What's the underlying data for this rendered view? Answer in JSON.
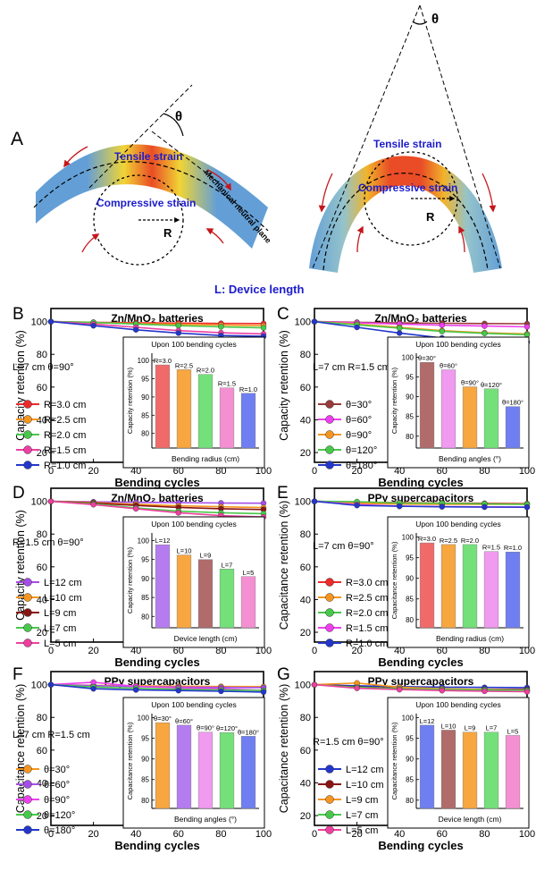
{
  "schematic": {
    "label": "A",
    "theta": "θ",
    "tensile": "Tensile strain",
    "compressive": "Compressive strain",
    "radius": "R",
    "neutral": "Mechanical neutral plane",
    "length": "L: Device length"
  },
  "colors": {
    "band_blue": "#5b9ad4",
    "band_red": "#e8431a",
    "band_yellow": "#f0d22a",
    "text_blue": "#1c1ccc",
    "arrow_red": "#c4161c"
  },
  "chart_data": [
    {
      "panel": "B",
      "type": "line",
      "title": "Zn/MnO₂ batteries",
      "xlabel": "Bending cycles",
      "ylabel": "Capacity retention (%)",
      "condition": "L=7 cm θ=90°",
      "x": [
        0,
        20,
        40,
        60,
        80,
        100
      ],
      "xticks": [
        0,
        20,
        40,
        60,
        80,
        100
      ],
      "yticks": [
        20,
        40,
        60,
        80,
        100
      ],
      "ylim": [
        14,
        108
      ],
      "series": [
        {
          "name": "R=3.0 cm",
          "color": "#ee2a2a",
          "values": [
            100,
            99.6,
            99.3,
            99.1,
            98.9,
            98.8
          ]
        },
        {
          "name": "R=2.5 cm",
          "color": "#f5951e",
          "values": [
            100,
            99.3,
            98.8,
            98.3,
            97.9,
            97.5
          ]
        },
        {
          "name": "R=2.0 cm",
          "color": "#48c84a",
          "values": [
            100,
            99.5,
            98.5,
            97.5,
            96.8,
            96.2
          ]
        },
        {
          "name": "R=1.5 cm",
          "color": "#ee3fa4",
          "values": [
            100,
            98.5,
            96.5,
            94.5,
            93.2,
            92.5
          ]
        },
        {
          "name": "R=1.0 cm",
          "color": "#2336cc",
          "values": [
            100,
            97.5,
            95,
            93,
            91.5,
            91
          ]
        }
      ],
      "inset": {
        "title": "Upon 100 bending cycles",
        "xlabel": "Bending radius (cm)",
        "ylabel": "Capacity retention (%)",
        "yticks": [
          80,
          85,
          90,
          95,
          100
        ],
        "ylim": [
          76,
          102
        ],
        "bars": [
          {
            "label": "R=3.0",
            "value": 98.8,
            "color": "#f06a6a"
          },
          {
            "label": "R=2.5",
            "value": 97.5,
            "color": "#f7a640"
          },
          {
            "label": "R=2.0",
            "value": 96.2,
            "color": "#74e07a"
          },
          {
            "label": "R=1.5",
            "value": 92.5,
            "color": "#f490d2"
          },
          {
            "label": "R=1.0",
            "value": 91,
            "color": "#6f7ef0"
          }
        ]
      }
    },
    {
      "panel": "C",
      "type": "line",
      "title": "Zn/MnO₂ batteries",
      "xlabel": "Bending cycles",
      "ylabel": "Capacity retention (%)",
      "condition": "L=7 cm R=1.5 cm",
      "x": [
        0,
        20,
        40,
        60,
        80,
        100
      ],
      "xticks": [
        0,
        20,
        40,
        60,
        80,
        100
      ],
      "yticks": [
        20,
        40,
        60,
        80,
        100
      ],
      "ylim": [
        14,
        108
      ],
      "series": [
        {
          "name": "θ=30°",
          "color": "#9a3a3a",
          "values": [
            100,
            99.6,
            99.2,
            99,
            98.8,
            98.7
          ]
        },
        {
          "name": "θ=60°",
          "color": "#ee3fee",
          "values": [
            100,
            99.3,
            98.5,
            97.8,
            97.3,
            96.8
          ]
        },
        {
          "name": "θ=90°",
          "color": "#f5951e",
          "values": [
            100,
            98.5,
            96.5,
            94.5,
            93.2,
            92.5
          ]
        },
        {
          "name": "θ=120°",
          "color": "#48c84a",
          "values": [
            100,
            98,
            96,
            94,
            92.8,
            92
          ]
        },
        {
          "name": "θ=180°",
          "color": "#2336cc",
          "values": [
            100,
            96.5,
            93,
            90,
            88.2,
            87.5
          ]
        }
      ],
      "inset": {
        "title": "Upon 100 bending cycles",
        "xlabel": "Bending angles (°)",
        "ylabel": "Capacity retention (%)",
        "yticks": [
          80,
          85,
          90,
          95,
          100
        ],
        "ylim": [
          77,
          101
        ],
        "bars": [
          {
            "label": "θ=30°",
            "value": 98.7,
            "color": "#b06b6b"
          },
          {
            "label": "θ=60°",
            "value": 96.8,
            "color": "#f09af0"
          },
          {
            "label": "θ=90°",
            "value": 92.5,
            "color": "#f7a640"
          },
          {
            "label": "θ=120°",
            "value": 92,
            "color": "#74e07a"
          },
          {
            "label": "θ=180°",
            "value": 87.5,
            "color": "#6f7ef0"
          }
        ]
      }
    },
    {
      "panel": "D",
      "type": "line",
      "title": "Zn/MnO₂ batteries",
      "xlabel": "Bending cycles",
      "ylabel": "Capacity retention (%)",
      "condition": "R=1.5 cm θ=90°",
      "x": [
        0,
        20,
        40,
        60,
        80,
        100
      ],
      "xticks": [
        0,
        20,
        40,
        60,
        80,
        100
      ],
      "yticks": [
        20,
        40,
        60,
        80,
        100
      ],
      "ylim": [
        14,
        108
      ],
      "series": [
        {
          "name": "L=12 cm",
          "color": "#a64de8",
          "values": [
            100,
            99.7,
            99.4,
            99.2,
            99,
            98.9
          ]
        },
        {
          "name": "L=10 cm",
          "color": "#f5951e",
          "values": [
            100,
            99.3,
            98.2,
            97.3,
            96.7,
            96.2
          ]
        },
        {
          "name": "L=9 cm",
          "color": "#8a1414",
          "values": [
            100,
            99,
            97.5,
            96.3,
            95.5,
            95
          ]
        },
        {
          "name": "L=7 cm",
          "color": "#48c84a",
          "values": [
            100,
            98.5,
            96,
            94,
            93,
            92.5
          ]
        },
        {
          "name": "L=5 cm",
          "color": "#ee3f9e",
          "values": [
            100,
            98,
            95.5,
            93,
            91.3,
            90.5
          ]
        }
      ],
      "inset": {
        "title": "Upon 100 bending cycles",
        "xlabel": "Device length (cm)",
        "ylabel": "Capacity retention (%)",
        "yticks": [
          80,
          85,
          90,
          95,
          100
        ],
        "ylim": [
          77,
          102
        ],
        "bars": [
          {
            "label": "L=12",
            "value": 98.9,
            "color": "#b57cf0"
          },
          {
            "label": "L=10",
            "value": 96.2,
            "color": "#f7a640"
          },
          {
            "label": "L=9",
            "value": 95,
            "color": "#b06b6b"
          },
          {
            "label": "L=7",
            "value": 92.5,
            "color": "#74e07a"
          },
          {
            "label": "L=5",
            "value": 90.5,
            "color": "#f490d2"
          }
        ]
      }
    },
    {
      "panel": "E",
      "type": "line",
      "title": "PPy supercapacitors",
      "xlabel": "Bending cycles",
      "ylabel": "Capacitance retention (%)",
      "condition": "L=7 cm θ=90°",
      "x": [
        0,
        20,
        40,
        60,
        80,
        100
      ],
      "xticks": [
        0,
        20,
        40,
        60,
        80,
        100
      ],
      "yticks": [
        20,
        40,
        60,
        80,
        100
      ],
      "ylim": [
        14,
        108
      ],
      "series": [
        {
          "name": "R=3.0 cm",
          "color": "#ee2a2a",
          "values": [
            100,
            99.5,
            99.2,
            99,
            98.8,
            98.6
          ]
        },
        {
          "name": "R=2.5 cm",
          "color": "#f5951e",
          "values": [
            100,
            98.8,
            98.3,
            98.2,
            98.2,
            98.2
          ]
        },
        {
          "name": "R=2.0 cm",
          "color": "#48c84a",
          "values": [
            100,
            99.8,
            99,
            98.8,
            98.5,
            98.2
          ]
        },
        {
          "name": "R=1.5 cm",
          "color": "#ee3fee",
          "values": [
            100,
            98,
            97,
            96.8,
            96.6,
            96.5
          ]
        },
        {
          "name": "R=1.0 cm",
          "color": "#2336cc",
          "values": [
            100,
            97.5,
            97,
            96.7,
            96.5,
            96.4
          ]
        }
      ],
      "inset": {
        "title": "Upon 100 bending cycles",
        "xlabel": "Bending radius (cm)",
        "ylabel": "Capacitance retention (%)",
        "yticks": [
          80,
          85,
          90,
          95,
          100
        ],
        "ylim": [
          78,
          101
        ],
        "bars": [
          {
            "label": "R=3.0",
            "value": 98.6,
            "color": "#f06a6a"
          },
          {
            "label": "R=2.5",
            "value": 98.2,
            "color": "#f7a640"
          },
          {
            "label": "R=2.0",
            "value": 98.2,
            "color": "#74e07a"
          },
          {
            "label": "R=1.5",
            "value": 96.5,
            "color": "#f09af0"
          },
          {
            "label": "R=1.0",
            "value": 96.4,
            "color": "#6f7ef0"
          }
        ]
      }
    },
    {
      "panel": "F",
      "type": "line",
      "title": "PPy supercapacitors",
      "xlabel": "Bending cycles",
      "ylabel": "Capacitance retention (%)",
      "condition": "L=7 cm R=1.5 cm",
      "x": [
        0,
        20,
        40,
        60,
        80,
        100
      ],
      "xticks": [
        0,
        20,
        40,
        60,
        80,
        100
      ],
      "yticks": [
        20,
        40,
        60,
        80,
        100
      ],
      "ylim": [
        14,
        108
      ],
      "series": [
        {
          "name": "θ=30°",
          "color": "#f5951e",
          "values": [
            100,
            99.6,
            99.3,
            99.1,
            98.9,
            98.8
          ]
        },
        {
          "name": "θ=60°",
          "color": "#a64de8",
          "values": [
            100,
            99.4,
            98.8,
            98.5,
            98.3,
            98.2
          ]
        },
        {
          "name": "θ=90°",
          "color": "#ee3fee",
          "values": [
            100,
            101.5,
            99,
            98,
            97.5,
            96.5
          ]
        },
        {
          "name": "θ=120°",
          "color": "#48c84a",
          "values": [
            100,
            98.6,
            97.8,
            97.2,
            96.8,
            96.4
          ]
        },
        {
          "name": "θ=180°",
          "color": "#2336cc",
          "values": [
            100,
            97.5,
            96.8,
            96.4,
            96,
            95.5
          ]
        }
      ],
      "inset": {
        "title": "Upon 100 bending cycles",
        "xlabel": "Bending angles (°)",
        "ylabel": "Capacitance retention (%)",
        "yticks": [
          80,
          85,
          90,
          95,
          100
        ],
        "ylim": [
          78,
          101
        ],
        "bars": [
          {
            "label": "θ=30°",
            "value": 98.8,
            "color": "#f7a640"
          },
          {
            "label": "θ=60°",
            "value": 98.2,
            "color": "#b57cf0"
          },
          {
            "label": "θ=90°",
            "value": 96.5,
            "color": "#f09af0"
          },
          {
            "label": "θ=120°",
            "value": 96.4,
            "color": "#74e07a"
          },
          {
            "label": "θ=180°",
            "value": 95.5,
            "color": "#6f7ef0"
          }
        ]
      }
    },
    {
      "panel": "G",
      "type": "line",
      "title": "PPy supercapacitors",
      "xlabel": "Bending cycles",
      "ylabel": "Capacitance retention (%)",
      "condition": "R=1.5 cm θ=90°",
      "x": [
        0,
        20,
        40,
        60,
        80,
        100
      ],
      "xticks": [
        0,
        20,
        40,
        60,
        80,
        100
      ],
      "yticks": [
        20,
        40,
        60,
        80,
        100
      ],
      "ylim": [
        14,
        108
      ],
      "series": [
        {
          "name": "L=12 cm",
          "color": "#2336cc",
          "values": [
            100,
            99.3,
            98.8,
            98.5,
            98.3,
            98.2
          ]
        },
        {
          "name": "L=10 cm",
          "color": "#8a1414",
          "values": [
            100,
            98.6,
            97.8,
            97.3,
            97.1,
            97
          ]
        },
        {
          "name": "L=9 cm",
          "color": "#f5951e",
          "values": [
            100,
            101,
            98.5,
            97.5,
            97,
            96.5
          ]
        },
        {
          "name": "L=7 cm",
          "color": "#48c84a",
          "values": [
            100,
            98.4,
            97.5,
            97,
            96.7,
            96.5
          ]
        },
        {
          "name": "L=5 cm",
          "color": "#ee3f9e",
          "values": [
            100,
            97.8,
            97,
            96.4,
            96,
            95.7
          ]
        }
      ],
      "inset": {
        "title": "Upon 100 bending cycles",
        "xlabel": "Device length (cm)",
        "ylabel": "Capacitance retention (%)",
        "yticks": [
          80,
          85,
          90,
          95,
          100
        ],
        "ylim": [
          78,
          101
        ],
        "bars": [
          {
            "label": "L=12",
            "value": 98.2,
            "color": "#6f7ef0"
          },
          {
            "label": "L=10",
            "value": 97,
            "color": "#b06b6b"
          },
          {
            "label": "L=9",
            "value": 96.5,
            "color": "#f7a640"
          },
          {
            "label": "L=7",
            "value": 96.5,
            "color": "#74e07a"
          },
          {
            "label": "L=5",
            "value": 95.7,
            "color": "#f490d2"
          }
        ]
      }
    }
  ]
}
